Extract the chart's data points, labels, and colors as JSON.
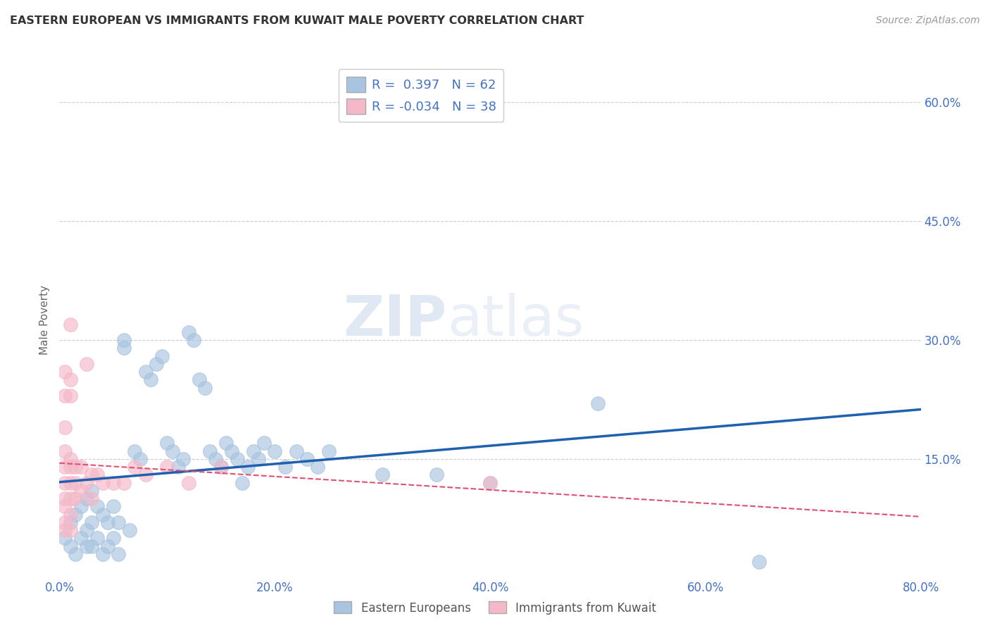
{
  "title": "EASTERN EUROPEAN VS IMMIGRANTS FROM KUWAIT MALE POVERTY CORRELATION CHART",
  "source": "Source: ZipAtlas.com",
  "ylabel": "Male Poverty",
  "xlim": [
    0.0,
    0.8
  ],
  "ylim": [
    0.0,
    0.65
  ],
  "xticks": [
    0.0,
    0.2,
    0.4,
    0.6,
    0.8
  ],
  "yticks": [
    0.0,
    0.15,
    0.3,
    0.45,
    0.6
  ],
  "xtick_labels": [
    "0.0%",
    "20.0%",
    "40.0%",
    "60.0%",
    "80.0%"
  ],
  "right_ytick_labels": [
    "",
    "15.0%",
    "30.0%",
    "45.0%",
    "60.0%"
  ],
  "blue_color": "#a8c4e0",
  "pink_color": "#f4b8c8",
  "blue_line_color": "#2060b0",
  "pink_line_color": "#e05070",
  "blue_R": 0.397,
  "blue_N": 62,
  "pink_R": -0.034,
  "pink_N": 38,
  "watermark_zip": "ZIP",
  "watermark_atlas": "atlas",
  "legend_label_blue": "Eastern Europeans",
  "legend_label_pink": "Immigrants from Kuwait",
  "blue_scatter_x": [
    0.005,
    0.01,
    0.01,
    0.015,
    0.015,
    0.02,
    0.02,
    0.025,
    0.025,
    0.025,
    0.03,
    0.03,
    0.03,
    0.035,
    0.035,
    0.04,
    0.04,
    0.045,
    0.045,
    0.05,
    0.05,
    0.055,
    0.055,
    0.06,
    0.06,
    0.065,
    0.07,
    0.075,
    0.08,
    0.085,
    0.09,
    0.095,
    0.1,
    0.105,
    0.11,
    0.115,
    0.12,
    0.125,
    0.13,
    0.135,
    0.14,
    0.145,
    0.15,
    0.155,
    0.16,
    0.165,
    0.17,
    0.175,
    0.18,
    0.185,
    0.19,
    0.2,
    0.21,
    0.22,
    0.23,
    0.24,
    0.25,
    0.3,
    0.35,
    0.4,
    0.5,
    0.65
  ],
  "blue_scatter_y": [
    0.05,
    0.04,
    0.07,
    0.03,
    0.08,
    0.05,
    0.09,
    0.04,
    0.06,
    0.1,
    0.04,
    0.07,
    0.11,
    0.05,
    0.09,
    0.03,
    0.08,
    0.04,
    0.07,
    0.05,
    0.09,
    0.03,
    0.07,
    0.3,
    0.29,
    0.06,
    0.16,
    0.15,
    0.26,
    0.25,
    0.27,
    0.28,
    0.17,
    0.16,
    0.14,
    0.15,
    0.31,
    0.3,
    0.25,
    0.24,
    0.16,
    0.15,
    0.14,
    0.17,
    0.16,
    0.15,
    0.12,
    0.14,
    0.16,
    0.15,
    0.17,
    0.16,
    0.14,
    0.16,
    0.15,
    0.14,
    0.16,
    0.13,
    0.13,
    0.12,
    0.22,
    0.02
  ],
  "pink_scatter_x": [
    0.005,
    0.005,
    0.005,
    0.005,
    0.005,
    0.005,
    0.005,
    0.005,
    0.005,
    0.005,
    0.01,
    0.01,
    0.01,
    0.01,
    0.01,
    0.01,
    0.01,
    0.01,
    0.01,
    0.015,
    0.015,
    0.015,
    0.02,
    0.02,
    0.025,
    0.025,
    0.03,
    0.03,
    0.035,
    0.04,
    0.05,
    0.06,
    0.07,
    0.08,
    0.1,
    0.12,
    0.15,
    0.4
  ],
  "pink_scatter_y": [
    0.06,
    0.07,
    0.09,
    0.1,
    0.12,
    0.14,
    0.16,
    0.19,
    0.23,
    0.26,
    0.06,
    0.08,
    0.1,
    0.12,
    0.14,
    0.15,
    0.23,
    0.25,
    0.32,
    0.1,
    0.12,
    0.14,
    0.11,
    0.14,
    0.12,
    0.27,
    0.1,
    0.13,
    0.13,
    0.12,
    0.12,
    0.12,
    0.14,
    0.13,
    0.14,
    0.12,
    0.14,
    0.12
  ]
}
